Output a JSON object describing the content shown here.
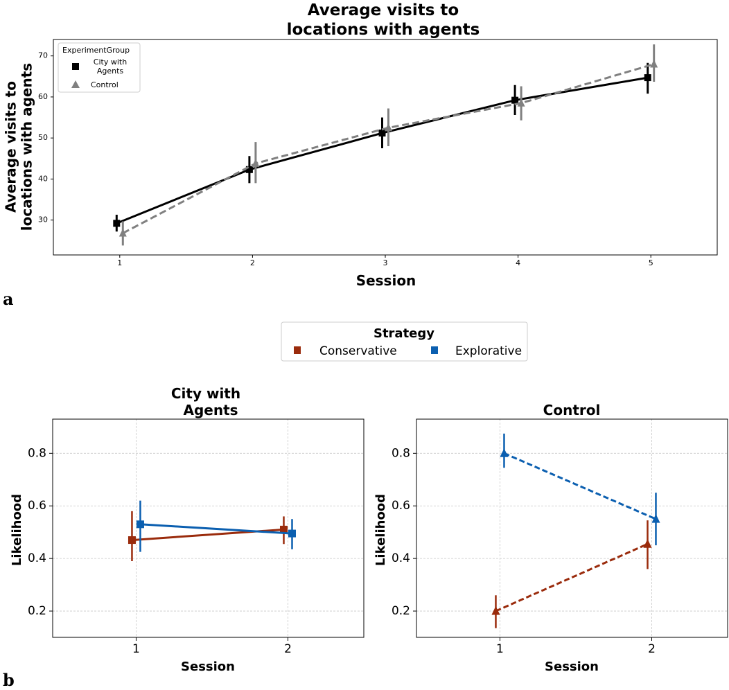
{
  "chart_data": [
    {
      "panel_label": "a",
      "type": "line",
      "title_lines": [
        "Average visits to",
        "locations with agents"
      ],
      "xlabel": "Session",
      "ylabel_lines": [
        "Average visits to",
        "locations with agents"
      ],
      "x": [
        1,
        2,
        3,
        4,
        5
      ],
      "xlim": [
        0.5,
        5.5
      ],
      "ylim": [
        21.5,
        74
      ],
      "yticks": [
        30,
        40,
        50,
        60,
        70
      ],
      "legend": {
        "title": "ExperimentGroup",
        "position": "top-left"
      },
      "series": [
        {
          "name": "City with Agents",
          "name_lines": [
            "City with",
            "Agents"
          ],
          "marker": "square",
          "color": "#000000",
          "dashed": false,
          "values": [
            29.2,
            42.3,
            51.2,
            59.2,
            64.7
          ],
          "err_low": [
            27.2,
            39.0,
            47.5,
            55.6,
            60.8
          ],
          "err_high": [
            31.3,
            45.6,
            55.0,
            62.9,
            68.3
          ]
        },
        {
          "name": "Control",
          "name_lines": [
            "Control"
          ],
          "marker": "triangle",
          "color": "#808080",
          "dashed": true,
          "values": [
            26.8,
            43.8,
            52.5,
            58.5,
            68.0
          ],
          "err_low": [
            23.8,
            39.0,
            48.0,
            54.3,
            63.7
          ],
          "err_high": [
            29.7,
            49.0,
            57.2,
            62.6,
            72.8
          ]
        }
      ]
    },
    {
      "panel_label": "b",
      "type": "line",
      "legend": {
        "title": "Strategy",
        "position": "top-center",
        "entries": [
          {
            "name": "Conservative",
            "color": "#9a2b0c"
          },
          {
            "name": "Explorative",
            "color": "#0b5fb0"
          }
        ]
      },
      "panels": [
        {
          "title_lines": [
            "City with",
            "Agents"
          ],
          "xlabel": "Session",
          "ylabel": "Likelihood",
          "x": [
            1,
            2
          ],
          "xlim": [
            0.45,
            2.5
          ],
          "ylim": [
            0.1,
            0.93
          ],
          "yticks": [
            0.2,
            0.4,
            0.6,
            0.8
          ],
          "grid": true,
          "series": [
            {
              "name": "Conservative",
              "color": "#9a2b0c",
              "marker": "square",
              "dashed": false,
              "values": [
                0.47,
                0.51
              ],
              "err_low": [
                0.39,
                0.455
              ],
              "err_high": [
                0.58,
                0.56
              ]
            },
            {
              "name": "Explorative",
              "color": "#0b5fb0",
              "marker": "square",
              "dashed": false,
              "values": [
                0.53,
                0.495
              ],
              "err_low": [
                0.425,
                0.435
              ],
              "err_high": [
                0.62,
                0.55
              ]
            }
          ]
        },
        {
          "title_lines": [
            "Control"
          ],
          "xlabel": "Session",
          "ylabel": "Likelihood",
          "x": [
            1,
            2
          ],
          "xlim": [
            0.45,
            2.5
          ],
          "ylim": [
            0.1,
            0.93
          ],
          "yticks": [
            0.2,
            0.4,
            0.6,
            0.8
          ],
          "grid": true,
          "series": [
            {
              "name": "Conservative",
              "color": "#9a2b0c",
              "marker": "triangle",
              "dashed": true,
              "values": [
                0.2,
                0.455
              ],
              "err_low": [
                0.135,
                0.36
              ],
              "err_high": [
                0.26,
                0.545
              ]
            },
            {
              "name": "Explorative",
              "color": "#0b5fb0",
              "marker": "triangle",
              "dashed": true,
              "values": [
                0.8,
                0.55
              ],
              "err_low": [
                0.745,
                0.45
              ],
              "err_high": [
                0.875,
                0.65
              ]
            }
          ]
        }
      ]
    }
  ]
}
